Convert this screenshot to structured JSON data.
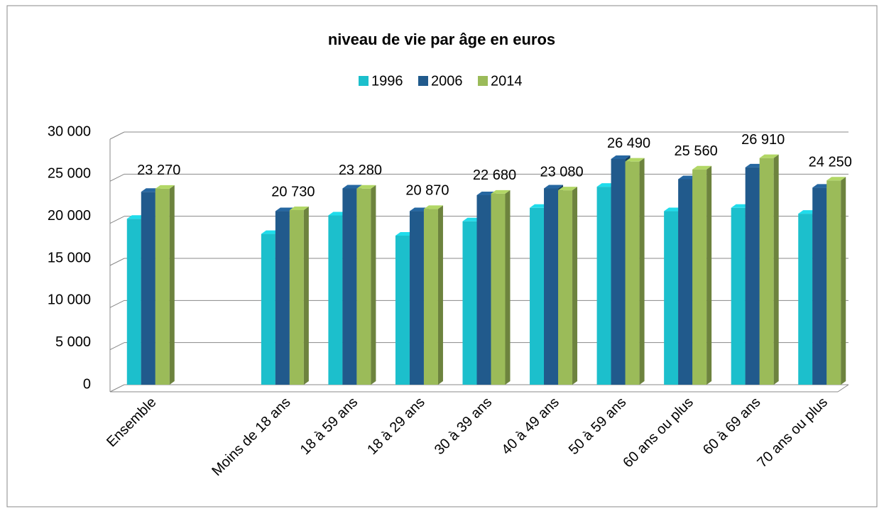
{
  "chart_data": {
    "type": "bar3d",
    "title": "niveau de vie par âge en euros",
    "categories": [
      "Ensemble",
      null,
      "Moins de 18 ans",
      "18 à 59 ans",
      "18 à 29 ans",
      "30 à 39 ans",
      "40 à 49 ans",
      "50 à 59 ans",
      "60 ans ou plus",
      "60 à 69 ans",
      "70 ans ou plus"
    ],
    "series": [
      {
        "name": "1996",
        "color": "#1cbfcc",
        "values": [
          19700,
          null,
          17900,
          20100,
          17700,
          19400,
          21000,
          23500,
          20600,
          21000,
          20300
        ]
      },
      {
        "name": "2006",
        "color": "#215a8c",
        "values": [
          22900,
          null,
          20600,
          23300,
          20600,
          22500,
          23300,
          26800,
          24400,
          25800,
          23400
        ]
      },
      {
        "name": "2014",
        "color": "#9bbb59",
        "values": [
          23270,
          null,
          20730,
          23280,
          20870,
          22680,
          23080,
          26490,
          25560,
          26910,
          24250
        ],
        "value_labels": [
          "23 270",
          null,
          "20 730",
          "23 280",
          "20 870",
          "22 680",
          "23 080",
          "26 490",
          "25 560",
          "26 910",
          "24 250"
        ]
      }
    ],
    "ylim": [
      0,
      30000
    ],
    "yticks": [
      0,
      {
        "value": 5000,
        "label": "5 000"
      },
      {
        "value": 10000,
        "label": "10 000"
      },
      {
        "value": 15000,
        "label": "15 000"
      },
      {
        "value": 20000,
        "label": "20 000"
      },
      {
        "value": 25000,
        "label": "25 000"
      },
      {
        "value": 30000,
        "label": "30 000"
      }
    ],
    "grid": true,
    "legend": "top"
  }
}
